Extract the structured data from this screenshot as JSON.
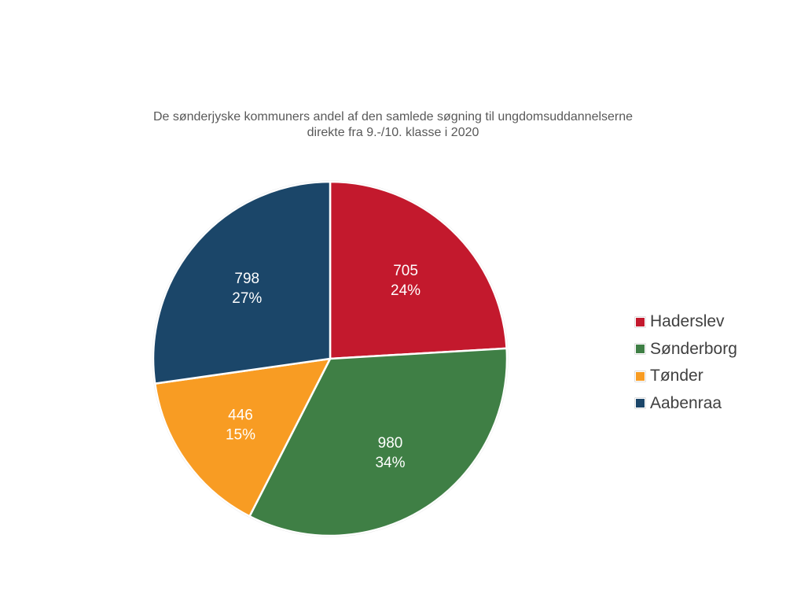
{
  "chart_data": {
    "type": "pie",
    "title_lines": [
      "De sønderjyske kommuners andel af den samlede søgning til ungdomsuddannelserne",
      "direkte fra 9.-/10. klasse i 2020"
    ],
    "categories": [
      "Haderslev",
      "Sønderborg",
      "Tønder",
      "Aabenraa"
    ],
    "values": [
      705,
      980,
      446,
      798
    ],
    "percent_labels": [
      "24%",
      "34%",
      "15%",
      "27%"
    ],
    "colors": [
      "#c3192d",
      "#3f7f45",
      "#f89c23",
      "#1b4669"
    ],
    "legend_position": "right"
  }
}
